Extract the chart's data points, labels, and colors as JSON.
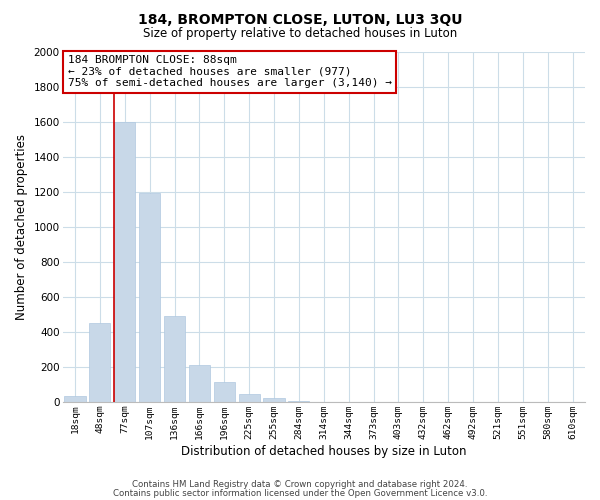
{
  "title": "184, BROMPTON CLOSE, LUTON, LU3 3QU",
  "subtitle": "Size of property relative to detached houses in Luton",
  "xlabel": "Distribution of detached houses by size in Luton",
  "ylabel": "Number of detached properties",
  "bar_labels": [
    "18sqm",
    "48sqm",
    "77sqm",
    "107sqm",
    "136sqm",
    "166sqm",
    "196sqm",
    "225sqm",
    "255sqm",
    "284sqm",
    "314sqm",
    "344sqm",
    "373sqm",
    "403sqm",
    "432sqm",
    "462sqm",
    "492sqm",
    "521sqm",
    "551sqm",
    "580sqm",
    "610sqm"
  ],
  "bar_values": [
    35,
    450,
    1600,
    1190,
    490,
    210,
    115,
    45,
    20,
    5,
    0,
    0,
    0,
    0,
    0,
    0,
    0,
    0,
    0,
    0,
    0
  ],
  "bar_color": "#c8d8e8",
  "bar_edge_color": "#b0c8e0",
  "vline_color": "#cc0000",
  "vline_index": 2,
  "ylim": [
    0,
    2000
  ],
  "yticks": [
    0,
    200,
    400,
    600,
    800,
    1000,
    1200,
    1400,
    1600,
    1800,
    2000
  ],
  "annotation_line1": "184 BROMPTON CLOSE: 88sqm",
  "annotation_line2": "← 23% of detached houses are smaller (977)",
  "annotation_line3": "75% of semi-detached houses are larger (3,140) →",
  "annotation_box_color": "#ffffff",
  "annotation_box_edge": "#cc0000",
  "footer1": "Contains HM Land Registry data © Crown copyright and database right 2024.",
  "footer2": "Contains public sector information licensed under the Open Government Licence v3.0.",
  "bg_color": "#ffffff",
  "grid_color": "#ccdde8",
  "title_fontsize": 10,
  "subtitle_fontsize": 8.5
}
